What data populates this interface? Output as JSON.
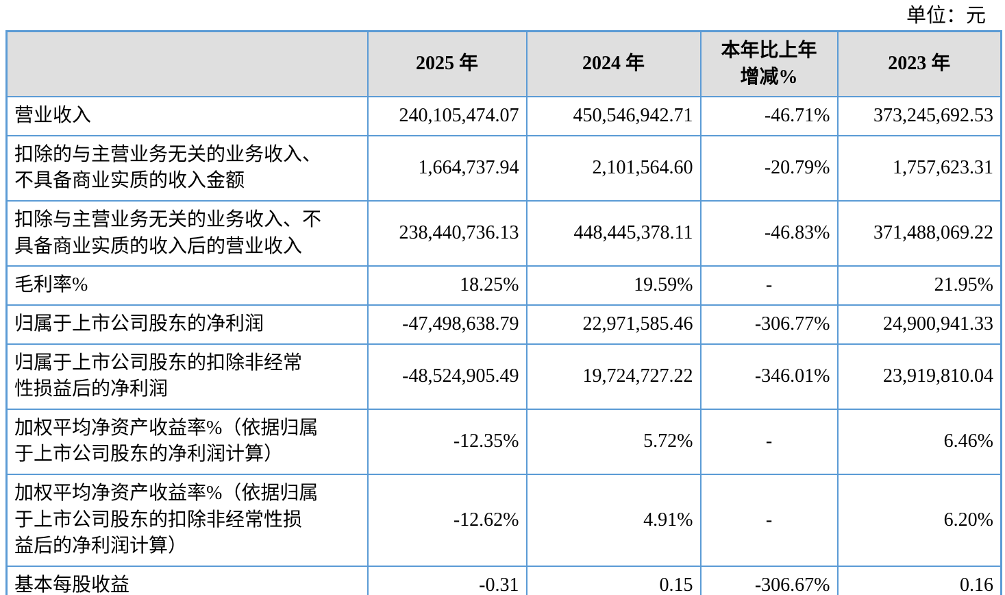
{
  "unit_label": "单位：元",
  "table": {
    "headers": [
      "",
      "2025 年",
      "2024 年",
      "本年比上年\n增减%",
      "2023 年"
    ],
    "column_keys": [
      "indicator",
      "y2025",
      "y2024",
      "yoy-change",
      "y2023"
    ],
    "rows": [
      {
        "label": "营业收入",
        "y2025": "240,105,474.07",
        "y2024": "450,546,942.71",
        "change": "-46.71%",
        "y2023": "373,245,692.53"
      },
      {
        "label": "扣除的与主营业务无关的业务收入、\n不具备商业实质的收入金额",
        "y2025": "1,664,737.94",
        "y2024": "2,101,564.60",
        "change": "-20.79%",
        "y2023": "1,757,623.31"
      },
      {
        "label": "扣除与主营业务无关的业务收入、不\n具备商业实质的收入后的营业收入",
        "y2025": "238,440,736.13",
        "y2024": "448,445,378.11",
        "change": "-46.83%",
        "y2023": "371,488,069.22"
      },
      {
        "label": "毛利率%",
        "y2025": "18.25%",
        "y2024": "19.59%",
        "change": "-",
        "y2023": "21.95%"
      },
      {
        "label": "归属于上市公司股东的净利润",
        "y2025": "-47,498,638.79",
        "y2024": "22,971,585.46",
        "change": "-306.77%",
        "y2023": "24,900,941.33"
      },
      {
        "label": "归属于上市公司股东的扣除非经常\n性损益后的净利润",
        "y2025": "-48,524,905.49",
        "y2024": "19,724,727.22",
        "change": "-346.01%",
        "y2023": "23,919,810.04"
      },
      {
        "label": "加权平均净资产收益率%（依据归属\n于上市公司股东的净利润计算）",
        "y2025": "-12.35%",
        "y2024": "5.72%",
        "change": "-",
        "y2023": "6.46%"
      },
      {
        "label": "加权平均净资产收益率%（依据归属\n于上市公司股东的扣除非经常性损\n益后的净利润计算）",
        "y2025": "-12.62%",
        "y2024": "4.91%",
        "change": "-",
        "y2023": "6.20%"
      },
      {
        "label": "基本每股收益",
        "y2025": "-0.31",
        "y2024": "0.15",
        "change": "-306.67%",
        "y2023": "0.16"
      }
    ]
  }
}
